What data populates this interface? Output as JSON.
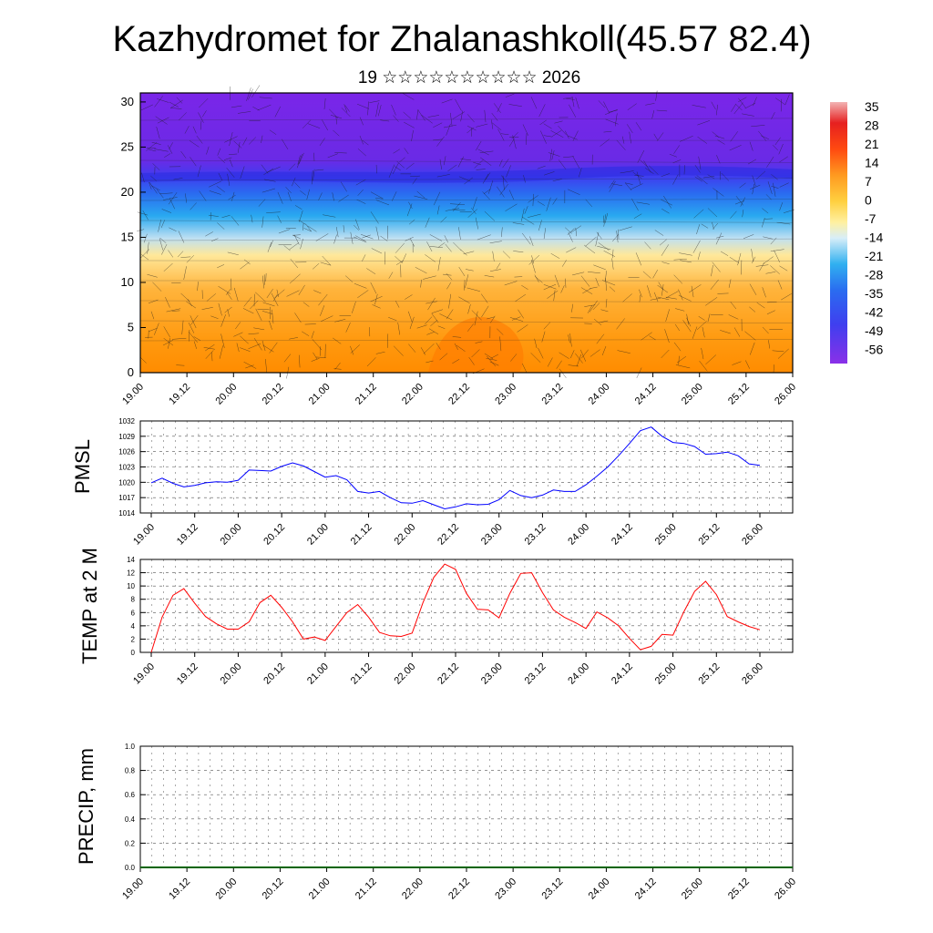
{
  "title": "Kazhydromet for Zhalanashkoll(45.57 82.4)",
  "subtitle": "19 ☆☆☆☆☆☆☆☆☆☆ 2026",
  "time_ticks": [
    "19.00",
    "19.12",
    "20.00",
    "20.12",
    "21.00",
    "21.12",
    "22.00",
    "22.12",
    "23.00",
    "23.12",
    "24.00",
    "24.12",
    "25.00",
    "25.12",
    "26.00"
  ],
  "chart_data": [
    {
      "type": "heatmap",
      "title": "",
      "x_categories": [
        "19.00",
        "19.12",
        "20.00",
        "20.12",
        "21.00",
        "21.12",
        "22.00",
        "22.12",
        "23.00",
        "23.12",
        "24.00",
        "24.12",
        "25.00",
        "25.12",
        "26.00"
      ],
      "ylim": [
        0,
        31
      ],
      "yticks": [
        "0",
        "5",
        "10",
        "15",
        "20",
        "25",
        "30"
      ],
      "colorbar_labels": [
        "35",
        "28",
        "21",
        "14",
        "7",
        "0",
        "-7",
        "-14",
        "-21",
        "-28",
        "-35",
        "-42",
        "-49",
        "-56"
      ],
      "colors": {
        "warm_low": "#ff8c00",
        "warm_mid": "#ffb43c",
        "yellow": "#ffe89a",
        "light_blue": "#bfe0f2",
        "cyan": "#29a9f0",
        "blue": "#3f43f0",
        "violet": "#7424e8"
      }
    },
    {
      "type": "line",
      "ylabel": "PMSL",
      "ylim": [
        1014,
        1032
      ],
      "yticks": [
        "1014",
        "1017",
        "1020",
        "1023",
        "1026",
        "1029",
        "1032"
      ],
      "line_color": "#0000ff",
      "x": [
        0,
        3,
        6,
        9,
        12,
        15,
        18,
        21,
        24,
        27,
        30,
        33,
        36,
        39,
        42,
        45,
        48,
        51,
        54,
        57,
        60,
        63,
        66,
        69,
        72,
        75,
        78,
        81,
        84,
        87,
        90,
        93,
        96,
        99,
        102,
        105,
        108,
        111,
        114,
        117,
        120,
        123,
        126,
        129,
        132,
        135,
        138,
        141,
        144,
        147,
        150,
        153,
        156,
        159,
        162,
        165,
        168
      ],
      "series": [
        {
          "name": "PMSL",
          "values": [
            1019.9,
            1020.8,
            1019.8,
            1019.1,
            1019.4,
            1019.9,
            1020.1,
            1020.0,
            1020.4,
            1022.4,
            1022.3,
            1022.2,
            1023.1,
            1023.8,
            1023.2,
            1022.1,
            1021.0,
            1021.3,
            1020.5,
            1018.2,
            1017.9,
            1018.2,
            1017.0,
            1016.0,
            1015.9,
            1016.4,
            1015.6,
            1014.8,
            1015.2,
            1015.8,
            1015.6,
            1015.7,
            1016.6,
            1018.4,
            1017.4,
            1017.0,
            1017.5,
            1018.5,
            1018.2,
            1018.2,
            1019.5,
            1021.2,
            1023.0,
            1025.2,
            1027.6,
            1030.1,
            1030.8,
            1029.0,
            1027.8,
            1027.6,
            1027.0,
            1025.5,
            1025.6,
            1025.9,
            1025.2,
            1023.6,
            1023.3
          ]
        }
      ]
    },
    {
      "type": "line",
      "ylabel": "TEMP at 2 M",
      "ylim": [
        0,
        14
      ],
      "yticks": [
        "0",
        "2",
        "4",
        "6",
        "8",
        "10",
        "12",
        "14"
      ],
      "line_color": "#ff0000",
      "x": [
        0,
        3,
        6,
        9,
        12,
        15,
        18,
        21,
        24,
        27,
        30,
        33,
        36,
        39,
        42,
        45,
        48,
        51,
        54,
        57,
        60,
        63,
        66,
        69,
        72,
        75,
        78,
        81,
        84,
        87,
        90,
        93,
        96,
        99,
        102,
        105,
        108,
        111,
        114,
        117,
        120,
        123,
        126,
        129,
        132,
        135,
        138,
        141,
        144,
        147,
        150,
        153,
        156,
        159,
        162,
        165,
        168
      ],
      "series": [
        {
          "name": "TEMP",
          "values": [
            0.0,
            5.3,
            8.6,
            9.6,
            7.4,
            5.4,
            4.3,
            3.5,
            3.5,
            4.6,
            7.5,
            8.6,
            6.8,
            4.6,
            2.0,
            2.3,
            1.8,
            3.9,
            6.0,
            7.2,
            5.3,
            3.0,
            2.5,
            2.4,
            2.9,
            7.5,
            11.3,
            13.3,
            12.5,
            8.9,
            6.5,
            6.4,
            5.2,
            8.9,
            11.9,
            12.0,
            9.0,
            6.4,
            5.3,
            4.5,
            3.6,
            6.1,
            5.2,
            4.0,
            2.1,
            0.4,
            0.9,
            2.7,
            2.6,
            6.1,
            9.2,
            10.7,
            8.7,
            5.4,
            4.6,
            3.9,
            3.4
          ]
        }
      ]
    },
    {
      "type": "line",
      "ylabel": "PRECIP, mm",
      "ylim": [
        0.0,
        1.0
      ],
      "yticks": [
        "0.0",
        "0.2",
        "0.4",
        "0.6",
        "0.8",
        "1.0"
      ],
      "line_color": "#006400",
      "series": [
        {
          "name": "PRECIP",
          "values": [
            0.0,
            0.0,
            0.0,
            0.0,
            0.0,
            0.0,
            0.0,
            0.0,
            0.0,
            0.0,
            0.0,
            0.0,
            0.0,
            0.0,
            0.0
          ]
        }
      ]
    }
  ]
}
